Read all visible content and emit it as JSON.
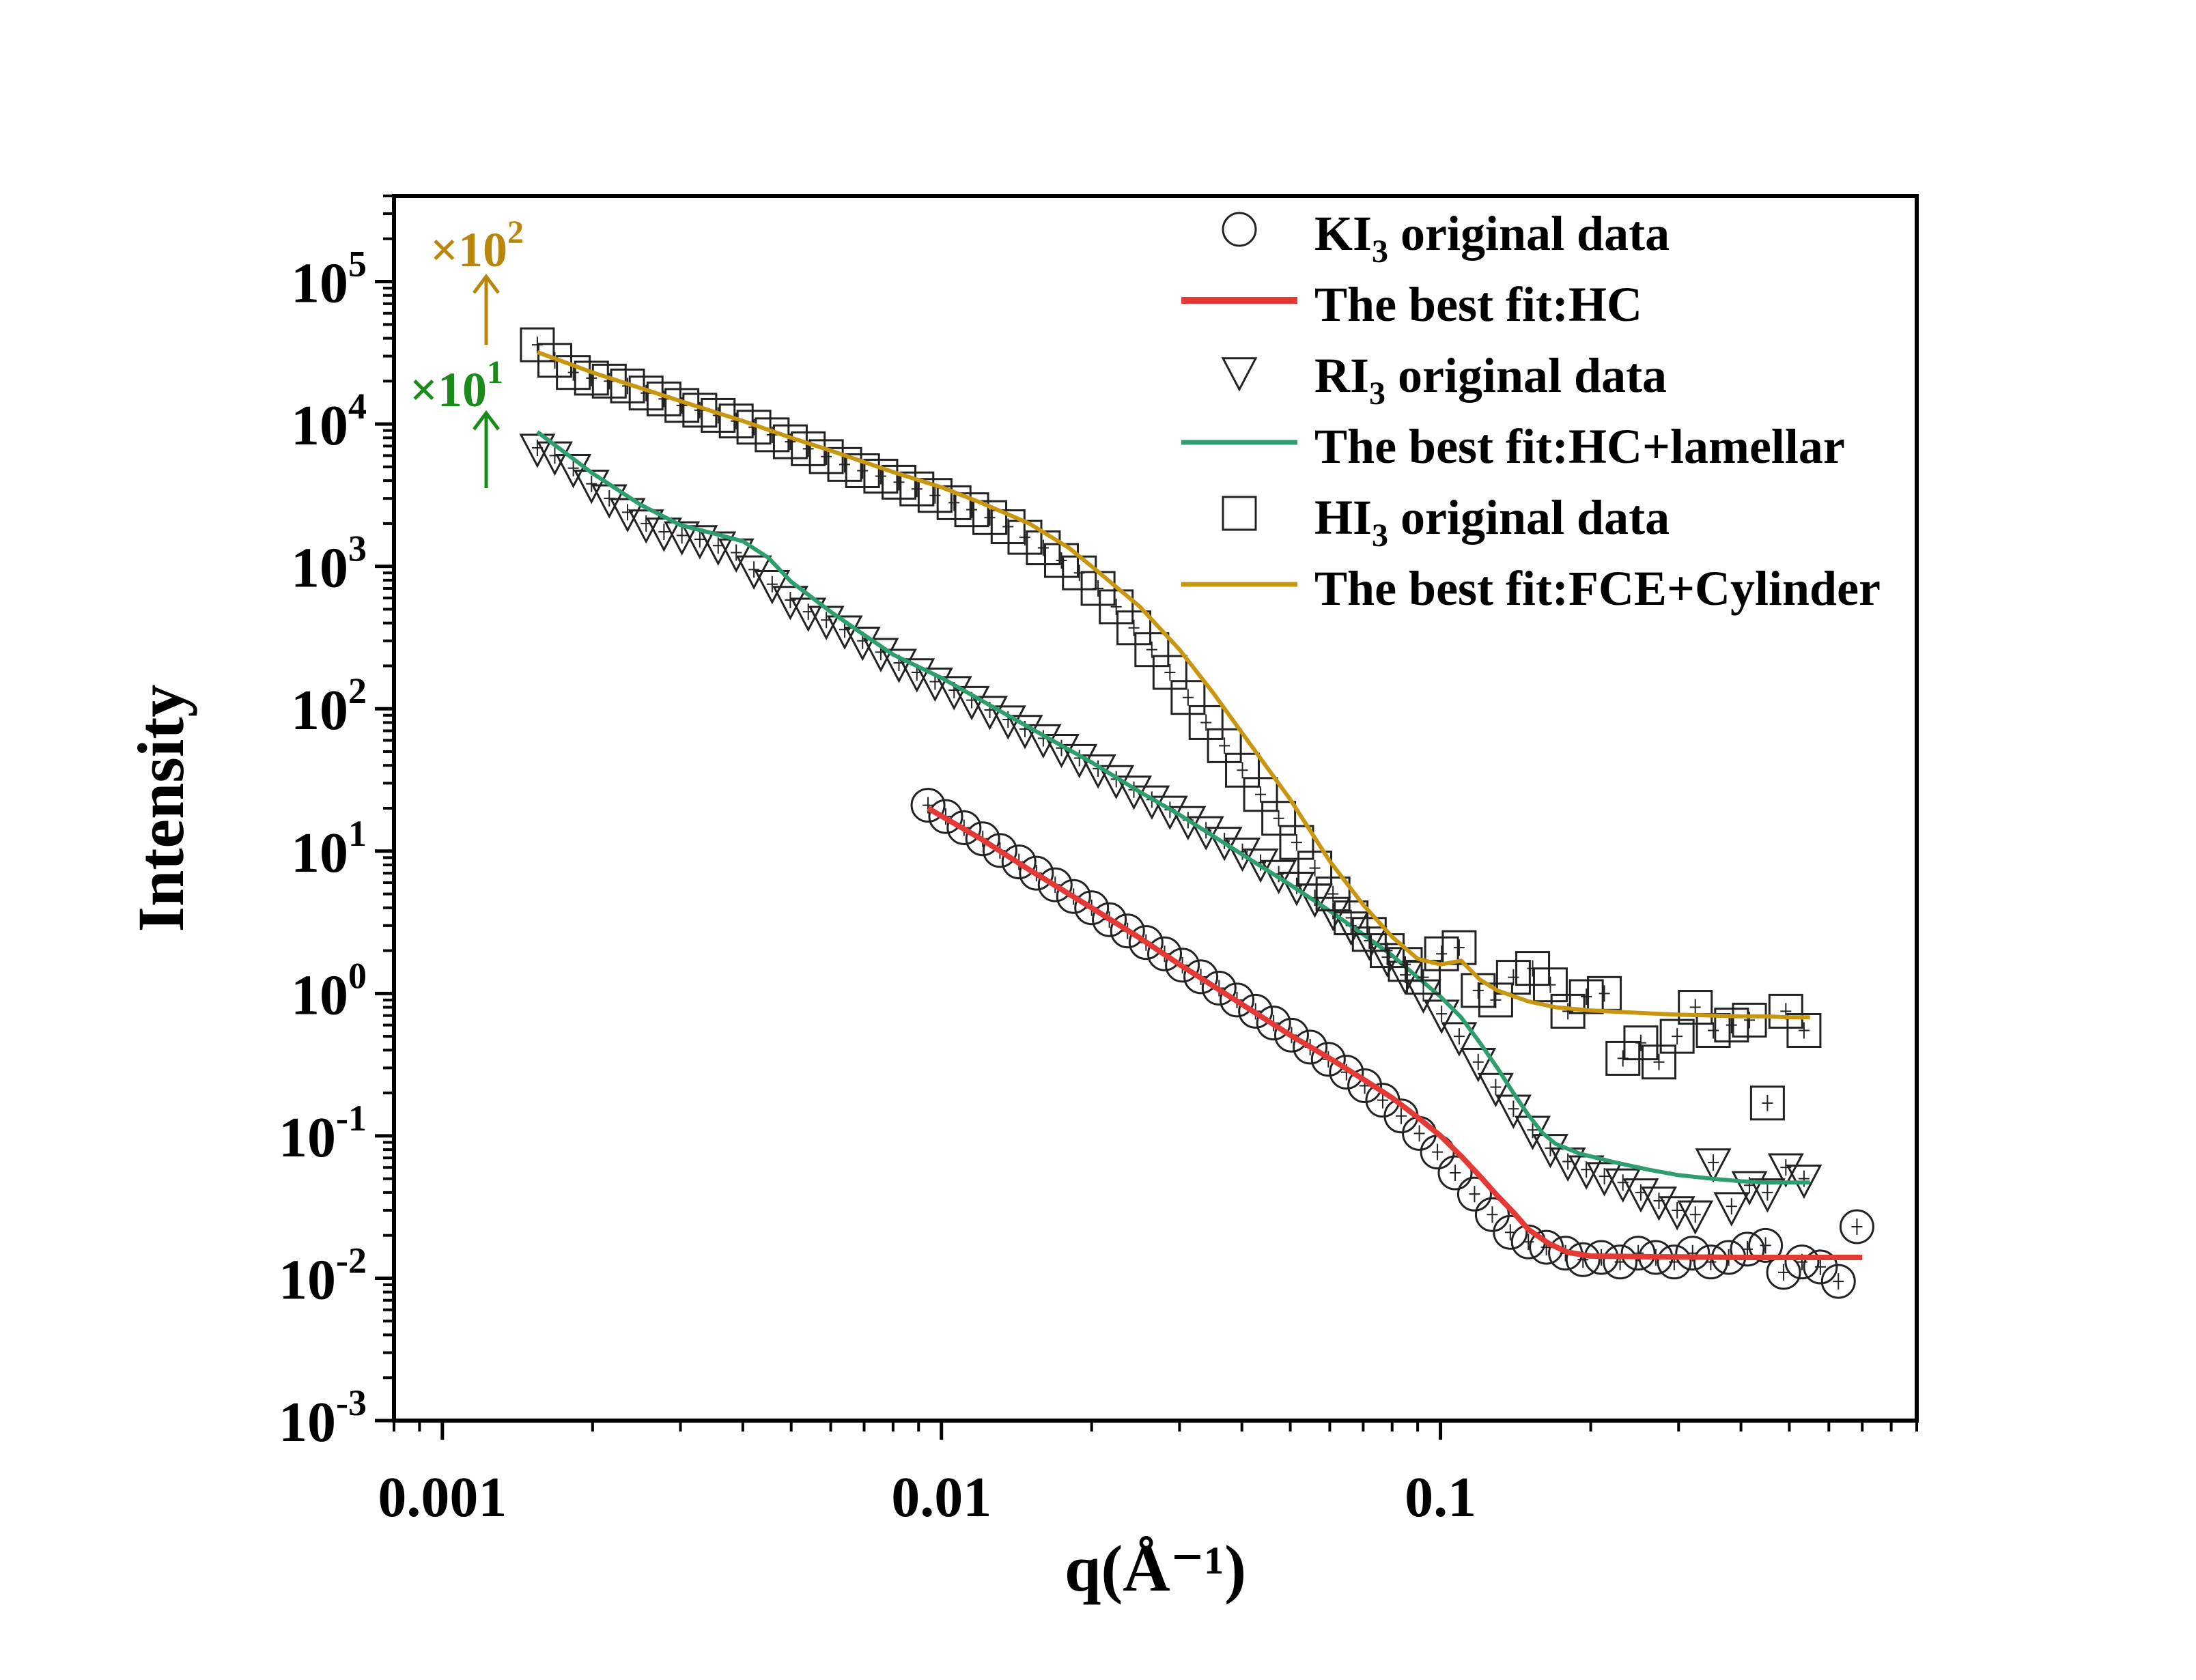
{
  "chart_data": {
    "type": "scatter",
    "xlabel": "q(Å⁻¹)",
    "ylabel": "Intensity",
    "xscale": "log",
    "yscale": "log",
    "xlim": [
      0.0008,
      0.9
    ],
    "ylim": [
      0.001,
      400000
    ],
    "xticks": [
      0.001,
      0.01,
      0.1
    ],
    "xtick_labels": [
      "0.001",
      "0.01",
      "0.1"
    ],
    "yticks": [
      0.001,
      0.01,
      0.1,
      1,
      10,
      100,
      1000,
      10000,
      100000
    ],
    "ytick_mantissa": "10",
    "ytick_exponents": [
      "-3",
      "-2",
      "-1",
      "0",
      "1",
      "2",
      "3",
      "4",
      "5"
    ],
    "legend_position": "top-right",
    "legend": [
      {
        "label_main": "KI",
        "label_sub": "3",
        "label_rest": " original data",
        "marker": "circle"
      },
      {
        "label_main": "The best fit:HC",
        "label_sub": "",
        "label_rest": "",
        "line_color": "#e53935"
      },
      {
        "label_main": "RI",
        "label_sub": "3",
        "label_rest": " original data",
        "marker": "triangle-down"
      },
      {
        "label_main": "The best fit:HC+lamellar",
        "label_sub": "",
        "label_rest": "",
        "line_color": "#2e9e6e"
      },
      {
        "label_main": "HI",
        "label_sub": "3",
        "label_rest": " original data",
        "marker": "square"
      },
      {
        "label_main": "The best fit:FCE+Cylinder",
        "label_sub": "",
        "label_rest": "",
        "line_color": "#c8960f"
      }
    ],
    "annotations": [
      {
        "base": "×10",
        "exponent": "2",
        "color": "#b8860b",
        "applies_to": "HI3"
      },
      {
        "base": "×10",
        "exponent": "1",
        "color": "#1a8a1a",
        "applies_to": "RI3"
      }
    ],
    "series": [
      {
        "name": "KI3 original data",
        "marker": "circle",
        "fit_name": "The best fit:HC",
        "fit_color": "#e53935",
        "x": [
          0.0094,
          0.0102,
          0.0111,
          0.0121,
          0.0131,
          0.0143,
          0.0155,
          0.0169,
          0.0184,
          0.02,
          0.0217,
          0.0236,
          0.0257,
          0.028,
          0.0304,
          0.0331,
          0.036,
          0.0391,
          0.0426,
          0.0463,
          0.0503,
          0.0548,
          0.0596,
          0.0648,
          0.0705,
          0.0766,
          0.0834,
          0.0907,
          0.0986,
          0.107,
          0.117,
          0.127,
          0.138,
          0.15,
          0.163,
          0.178,
          0.193,
          0.21,
          0.229,
          0.249,
          0.27,
          0.294,
          0.32,
          0.348,
          0.378,
          0.412,
          0.448,
          0.487,
          0.53,
          0.577,
          0.627,
          0.683
        ],
        "y": [
          21,
          17.5,
          14.6,
          12.2,
          10.1,
          8.4,
          7.0,
          5.8,
          4.8,
          4.0,
          3.3,
          2.75,
          2.28,
          1.9,
          1.58,
          1.31,
          1.09,
          0.9,
          0.75,
          0.62,
          0.51,
          0.42,
          0.345,
          0.28,
          0.225,
          0.178,
          0.138,
          0.104,
          0.077,
          0.055,
          0.039,
          0.028,
          0.021,
          0.018,
          0.0165,
          0.015,
          0.0135,
          0.014,
          0.013,
          0.015,
          0.014,
          0.013,
          0.015,
          0.013,
          0.014,
          0.016,
          0.017,
          0.011,
          0.013,
          0.012,
          0.0095,
          0.023
        ],
        "fit_x": [
          0.0094,
          0.012,
          0.015,
          0.02,
          0.025,
          0.03,
          0.04,
          0.05,
          0.06,
          0.07,
          0.08,
          0.09,
          0.1,
          0.11,
          0.12,
          0.13,
          0.14,
          0.15,
          0.165,
          0.18,
          0.2,
          0.25,
          0.3,
          0.4,
          0.5,
          0.6,
          0.7
        ],
        "fit_y": [
          20,
          12.2,
          7.4,
          4.0,
          2.45,
          1.6,
          0.84,
          0.51,
          0.35,
          0.25,
          0.185,
          0.135,
          0.1,
          0.072,
          0.052,
          0.038,
          0.029,
          0.022,
          0.0175,
          0.0152,
          0.0143,
          0.0142,
          0.0141,
          0.014,
          0.014,
          0.014,
          0.014
        ]
      },
      {
        "name": "RI3 original data",
        "marker": "triangle-down",
        "fit_name": "The best fit:HC+lamellar",
        "fit_color": "#2e9e6e",
        "x": [
          0.00155,
          0.00168,
          0.00183,
          0.00199,
          0.00216,
          0.00235,
          0.00256,
          0.00278,
          0.00302,
          0.00328,
          0.00357,
          0.00388,
          0.00421,
          0.00458,
          0.00498,
          0.00541,
          0.00588,
          0.0064,
          0.00695,
          0.00756,
          0.00822,
          0.00893,
          0.00971,
          0.0106,
          0.0115,
          0.0125,
          0.0136,
          0.0147,
          0.016,
          0.0174,
          0.0189,
          0.0206,
          0.0224,
          0.0243,
          0.0264,
          0.0287,
          0.0312,
          0.0339,
          0.0369,
          0.0401,
          0.0436,
          0.0474,
          0.0515,
          0.056,
          0.0609,
          0.0662,
          0.072,
          0.0782,
          0.085,
          0.0924,
          0.1005,
          0.109,
          0.119,
          0.129,
          0.14,
          0.153,
          0.166,
          0.18,
          0.196,
          0.213,
          0.232,
          0.252,
          0.274,
          0.298,
          0.324,
          0.352,
          0.383,
          0.416,
          0.452,
          0.492,
          0.535
        ],
        "y": [
          6800,
          6000,
          4900,
          3800,
          3000,
          2400,
          2000,
          1750,
          1650,
          1550,
          1400,
          1250,
          950,
          750,
          580,
          480,
          420,
          360,
          300,
          250,
          210,
          180,
          155,
          135,
          115,
          98,
          84,
          72,
          62,
          53,
          45,
          38,
          32,
          27,
          23,
          19.5,
          16.5,
          14,
          11.8,
          9.9,
          8.3,
          6.9,
          5.7,
          4.7,
          3.8,
          3.0,
          2.35,
          1.8,
          1.35,
          1.0,
          0.72,
          0.5,
          0.33,
          0.22,
          0.155,
          0.11,
          0.082,
          0.066,
          0.058,
          0.052,
          0.047,
          0.04,
          0.035,
          0.03,
          0.028,
          0.065,
          0.032,
          0.045,
          0.04,
          0.06,
          0.05
        ],
        "fit_x": [
          0.00155,
          0.002,
          0.0025,
          0.003,
          0.0035,
          0.004,
          0.0045,
          0.005,
          0.006,
          0.007,
          0.008,
          0.01,
          0.013,
          0.016,
          0.02,
          0.025,
          0.03,
          0.04,
          0.05,
          0.06,
          0.07,
          0.08,
          0.09,
          0.1,
          0.11,
          0.12,
          0.13,
          0.14,
          0.15,
          0.16,
          0.17,
          0.19,
          0.22,
          0.26,
          0.3,
          0.35,
          0.4,
          0.45,
          0.5,
          0.55
        ],
        "fit_y": [
          8800,
          4500,
          2700,
          1950,
          1700,
          1500,
          1150,
          780,
          480,
          330,
          240,
          165,
          98,
          65,
          42,
          26,
          18,
          9.5,
          5.8,
          3.8,
          2.6,
          1.85,
          1.3,
          0.95,
          0.68,
          0.45,
          0.3,
          0.2,
          0.14,
          0.105,
          0.088,
          0.075,
          0.066,
          0.058,
          0.053,
          0.05,
          0.048,
          0.047,
          0.047,
          0.047
        ]
      },
      {
        "name": "HI3 original data",
        "marker": "square",
        "fit_name": "The best fit:FCE+Cylinder",
        "fit_color": "#c8960f",
        "x": [
          0.00155,
          0.00168,
          0.00183,
          0.00199,
          0.00216,
          0.00235,
          0.00256,
          0.00278,
          0.00302,
          0.00328,
          0.00357,
          0.00388,
          0.00421,
          0.00458,
          0.00498,
          0.00541,
          0.00588,
          0.0064,
          0.00695,
          0.00756,
          0.00822,
          0.00893,
          0.00971,
          0.0106,
          0.0115,
          0.0125,
          0.0136,
          0.0147,
          0.016,
          0.0174,
          0.0189,
          0.0206,
          0.0224,
          0.0243,
          0.0264,
          0.0287,
          0.0312,
          0.0339,
          0.0369,
          0.0401,
          0.0436,
          0.0474,
          0.0515,
          0.056,
          0.0609,
          0.0662,
          0.072,
          0.0782,
          0.085,
          0.0924,
          0.1005,
          0.109,
          0.119,
          0.129,
          0.14,
          0.153,
          0.166,
          0.18,
          0.196,
          0.213,
          0.232,
          0.252,
          0.274,
          0.298,
          0.324,
          0.352,
          0.383,
          0.416,
          0.452,
          0.492,
          0.535
        ],
        "y": [
          36000,
          28000,
          23000,
          21000,
          20000,
          18500,
          16500,
          15000,
          13500,
          12500,
          11500,
          10500,
          9500,
          8400,
          7500,
          6700,
          5900,
          5200,
          4700,
          4300,
          3900,
          3500,
          3150,
          2800,
          2500,
          2200,
          1900,
          1600,
          1350,
          1100,
          900,
          700,
          520,
          370,
          260,
          180,
          120,
          80,
          55,
          37,
          25,
          17,
          11.5,
          7.6,
          5.0,
          3.4,
          2.6,
          2.0,
          1.6,
          1.3,
          1.9,
          2.1,
          1.05,
          0.9,
          1.3,
          1.5,
          1.15,
          0.75,
          0.95,
          1.0,
          0.35,
          0.45,
          0.33,
          0.5,
          0.8,
          0.55,
          0.6,
          0.65,
          0.17,
          0.75,
          0.55
        ],
        "fit_x": [
          0.00155,
          0.002,
          0.003,
          0.004,
          0.005,
          0.006,
          0.008,
          0.01,
          0.012,
          0.015,
          0.018,
          0.02,
          0.025,
          0.03,
          0.035,
          0.04,
          0.05,
          0.06,
          0.07,
          0.08,
          0.09,
          0.1,
          0.11,
          0.12,
          0.13,
          0.15,
          0.17,
          0.2,
          0.25,
          0.3,
          0.35,
          0.4,
          0.45,
          0.5,
          0.55
        ],
        "fit_y": [
          32000,
          23000,
          14500,
          10500,
          8000,
          6500,
          4600,
          3600,
          2800,
          2000,
          1350,
          1000,
          520,
          260,
          130,
          68,
          23,
          8.5,
          4.2,
          2.5,
          1.75,
          1.6,
          1.7,
          1.25,
          1.05,
          0.88,
          0.8,
          0.76,
          0.73,
          0.71,
          0.7,
          0.69,
          0.69,
          0.68,
          0.68
        ]
      }
    ]
  }
}
